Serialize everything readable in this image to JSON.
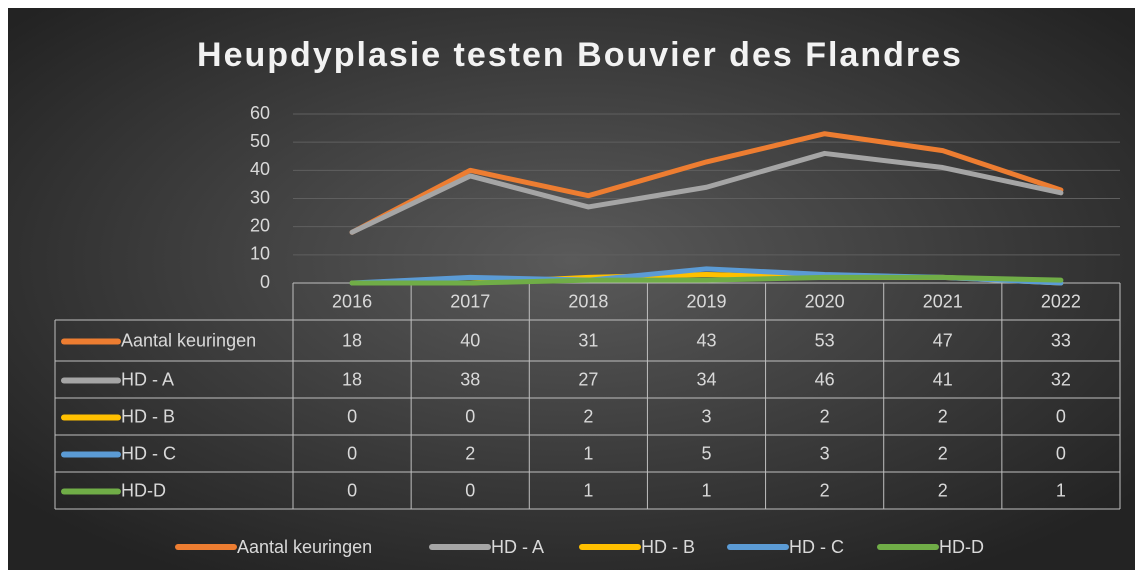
{
  "chart_data": {
    "type": "line",
    "title": "Heupdyplasie testen Bouvier des Flandres",
    "categories": [
      "2016",
      "2017",
      "2018",
      "2019",
      "2020",
      "2021",
      "2022"
    ],
    "series": [
      {
        "name": "Aantal keuringen",
        "color": "#ed7d31",
        "values": [
          18,
          40,
          31,
          43,
          53,
          47,
          33
        ]
      },
      {
        "name": "HD - A",
        "color": "#a5a5a5",
        "values": [
          18,
          38,
          27,
          34,
          46,
          41,
          32
        ]
      },
      {
        "name": "HD - B",
        "color": "#ffc000",
        "values": [
          0,
          0,
          2,
          3,
          2,
          2,
          0
        ]
      },
      {
        "name": "HD - C",
        "color": "#5b9bd5",
        "values": [
          0,
          2,
          1,
          5,
          3,
          2,
          0
        ]
      },
      {
        "name": "HD-D",
        "color": "#70ad47",
        "values": [
          0,
          0,
          1,
          1,
          2,
          2,
          1
        ]
      }
    ],
    "ylim": [
      0,
      60
    ],
    "yticks": [
      0,
      10,
      20,
      30,
      40,
      50,
      60
    ],
    "grid": true,
    "legend": "bottom"
  }
}
